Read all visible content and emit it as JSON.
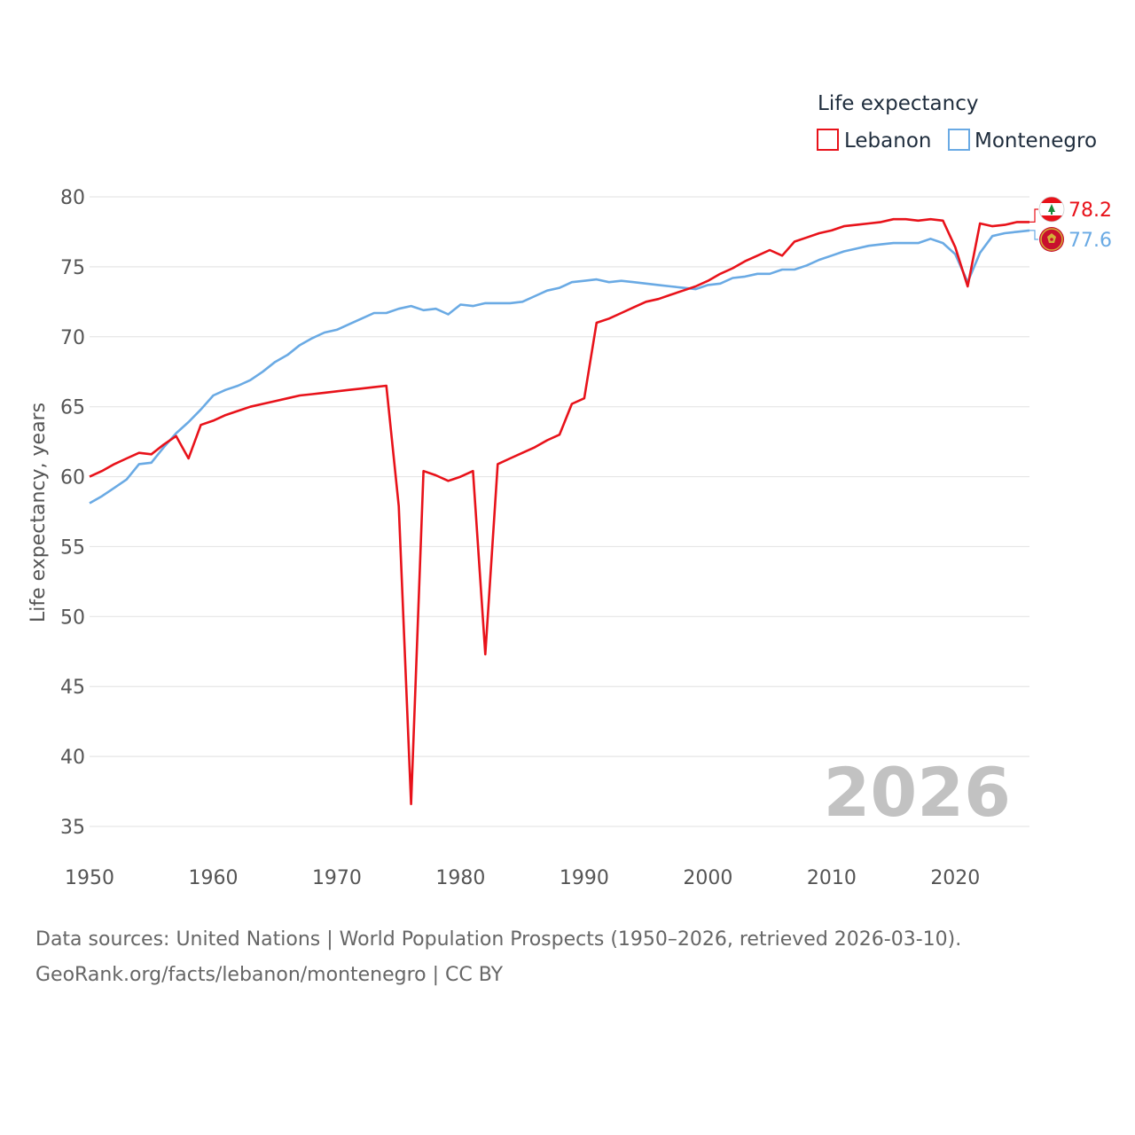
{
  "chart_data": {
    "type": "line",
    "title": "Life expectancy",
    "xlabel": "",
    "ylabel": "Life expectancy, years",
    "xlim": [
      1950,
      2026
    ],
    "ylim": [
      35,
      80
    ],
    "xticks": [
      1950,
      1960,
      1970,
      1980,
      1990,
      2000,
      2010,
      2020
    ],
    "yticks": [
      35,
      40,
      45,
      50,
      55,
      60,
      65,
      70,
      75,
      80
    ],
    "grid": true,
    "legend_position": "top-right",
    "watermark_year": "2026",
    "x": [
      1950,
      1951,
      1952,
      1953,
      1954,
      1955,
      1956,
      1957,
      1958,
      1959,
      1960,
      1961,
      1962,
      1963,
      1964,
      1965,
      1966,
      1967,
      1968,
      1969,
      1970,
      1971,
      1972,
      1973,
      1974,
      1975,
      1976,
      1977,
      1978,
      1979,
      1980,
      1981,
      1982,
      1983,
      1984,
      1985,
      1986,
      1987,
      1988,
      1989,
      1990,
      1991,
      1992,
      1993,
      1994,
      1995,
      1996,
      1997,
      1998,
      1999,
      2000,
      2001,
      2002,
      2003,
      2004,
      2005,
      2006,
      2007,
      2008,
      2009,
      2010,
      2011,
      2012,
      2013,
      2014,
      2015,
      2016,
      2017,
      2018,
      2019,
      2020,
      2021,
      2022,
      2023,
      2024,
      2025,
      2026
    ],
    "series": [
      {
        "name": "Lebanon",
        "color": "#e8121a",
        "end_label": "78.2",
        "flag_icon": "lebanon-flag-icon",
        "values": [
          60.0,
          60.4,
          60.9,
          61.3,
          61.7,
          61.6,
          62.3,
          62.9,
          61.3,
          63.7,
          64.0,
          64.4,
          64.7,
          65.0,
          65.2,
          65.4,
          65.6,
          65.8,
          65.9,
          66.0,
          66.1,
          66.2,
          66.3,
          66.4,
          66.5,
          57.9,
          36.6,
          60.4,
          60.1,
          59.7,
          60.0,
          60.4,
          47.3,
          60.9,
          61.3,
          61.7,
          62.1,
          62.6,
          63.0,
          65.2,
          65.6,
          71.0,
          71.3,
          71.7,
          72.1,
          72.5,
          72.7,
          73.0,
          73.3,
          73.6,
          74.0,
          74.5,
          74.9,
          75.4,
          75.8,
          76.2,
          75.8,
          76.8,
          77.1,
          77.4,
          77.6,
          77.9,
          78.0,
          78.1,
          78.2,
          78.4,
          78.4,
          78.3,
          78.4,
          78.3,
          76.4,
          73.6,
          78.1,
          77.9,
          78.0,
          78.2,
          78.2
        ]
      },
      {
        "name": "Montenegro",
        "color": "#6aaae4",
        "end_label": "77.6",
        "flag_icon": "montenegro-flag-icon",
        "values": [
          58.1,
          58.6,
          59.2,
          59.8,
          60.9,
          61.0,
          62.1,
          63.1,
          63.9,
          64.8,
          65.8,
          66.2,
          66.5,
          66.9,
          67.5,
          68.2,
          68.7,
          69.4,
          69.9,
          70.3,
          70.5,
          70.9,
          71.3,
          71.7,
          71.7,
          72.0,
          72.2,
          71.9,
          72.0,
          71.6,
          72.3,
          72.2,
          72.4,
          72.4,
          72.4,
          72.5,
          72.9,
          73.3,
          73.5,
          73.9,
          74.0,
          74.1,
          73.9,
          74.0,
          73.9,
          73.8,
          73.7,
          73.6,
          73.5,
          73.4,
          73.7,
          73.8,
          74.2,
          74.3,
          74.5,
          74.5,
          74.8,
          74.8,
          75.1,
          75.5,
          75.8,
          76.1,
          76.3,
          76.5,
          76.6,
          76.7,
          76.7,
          76.7,
          77.0,
          76.7,
          75.9,
          73.9,
          76.0,
          77.2,
          77.4,
          77.5,
          77.6
        ]
      }
    ]
  },
  "source": {
    "line1": "Data sources: United Nations | World Population Prospects (1950–2026, retrieved 2026-03-10).",
    "line2": "GeoRank.org/facts/lebanon/montenegro | CC BY"
  }
}
